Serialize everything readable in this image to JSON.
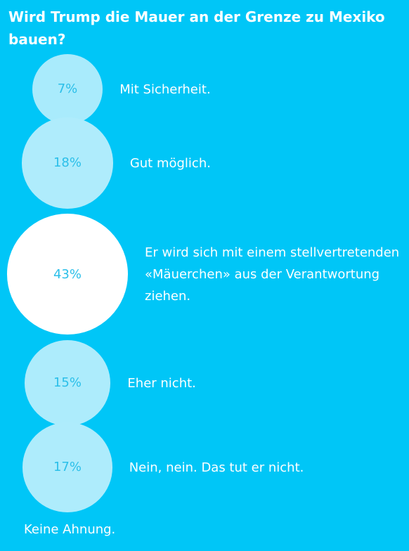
{
  "title": "Wird Trump die Mauer an der Grenze zu Mexiko bauen?",
  "colors": {
    "background": "#00c6f7",
    "text": "#ffffff",
    "percent_text": "#2bbfe9",
    "bubble_fill_scale": [
      "#a9ebfc",
      "#ffffff"
    ]
  },
  "chart_data": {
    "type": "bubble",
    "title": "Wird Trump die Mauer an der Grenze zu Mexiko bauen?",
    "unit": "%",
    "categories": [
      "Mit Sicherheit.",
      "Gut möglich.",
      "Er wird sich mit einem stellvertretenden «Mäuerchen» aus der Verantwortung ziehen.",
      "Eher nicht.",
      "Nein, nein. Das tut er nicht.",
      "Keine Ahnung."
    ],
    "values": [
      7,
      18,
      43,
      15,
      17,
      null
    ],
    "value_labels": [
      "7%",
      "18%",
      "43%",
      "15%",
      "17%",
      ""
    ]
  }
}
